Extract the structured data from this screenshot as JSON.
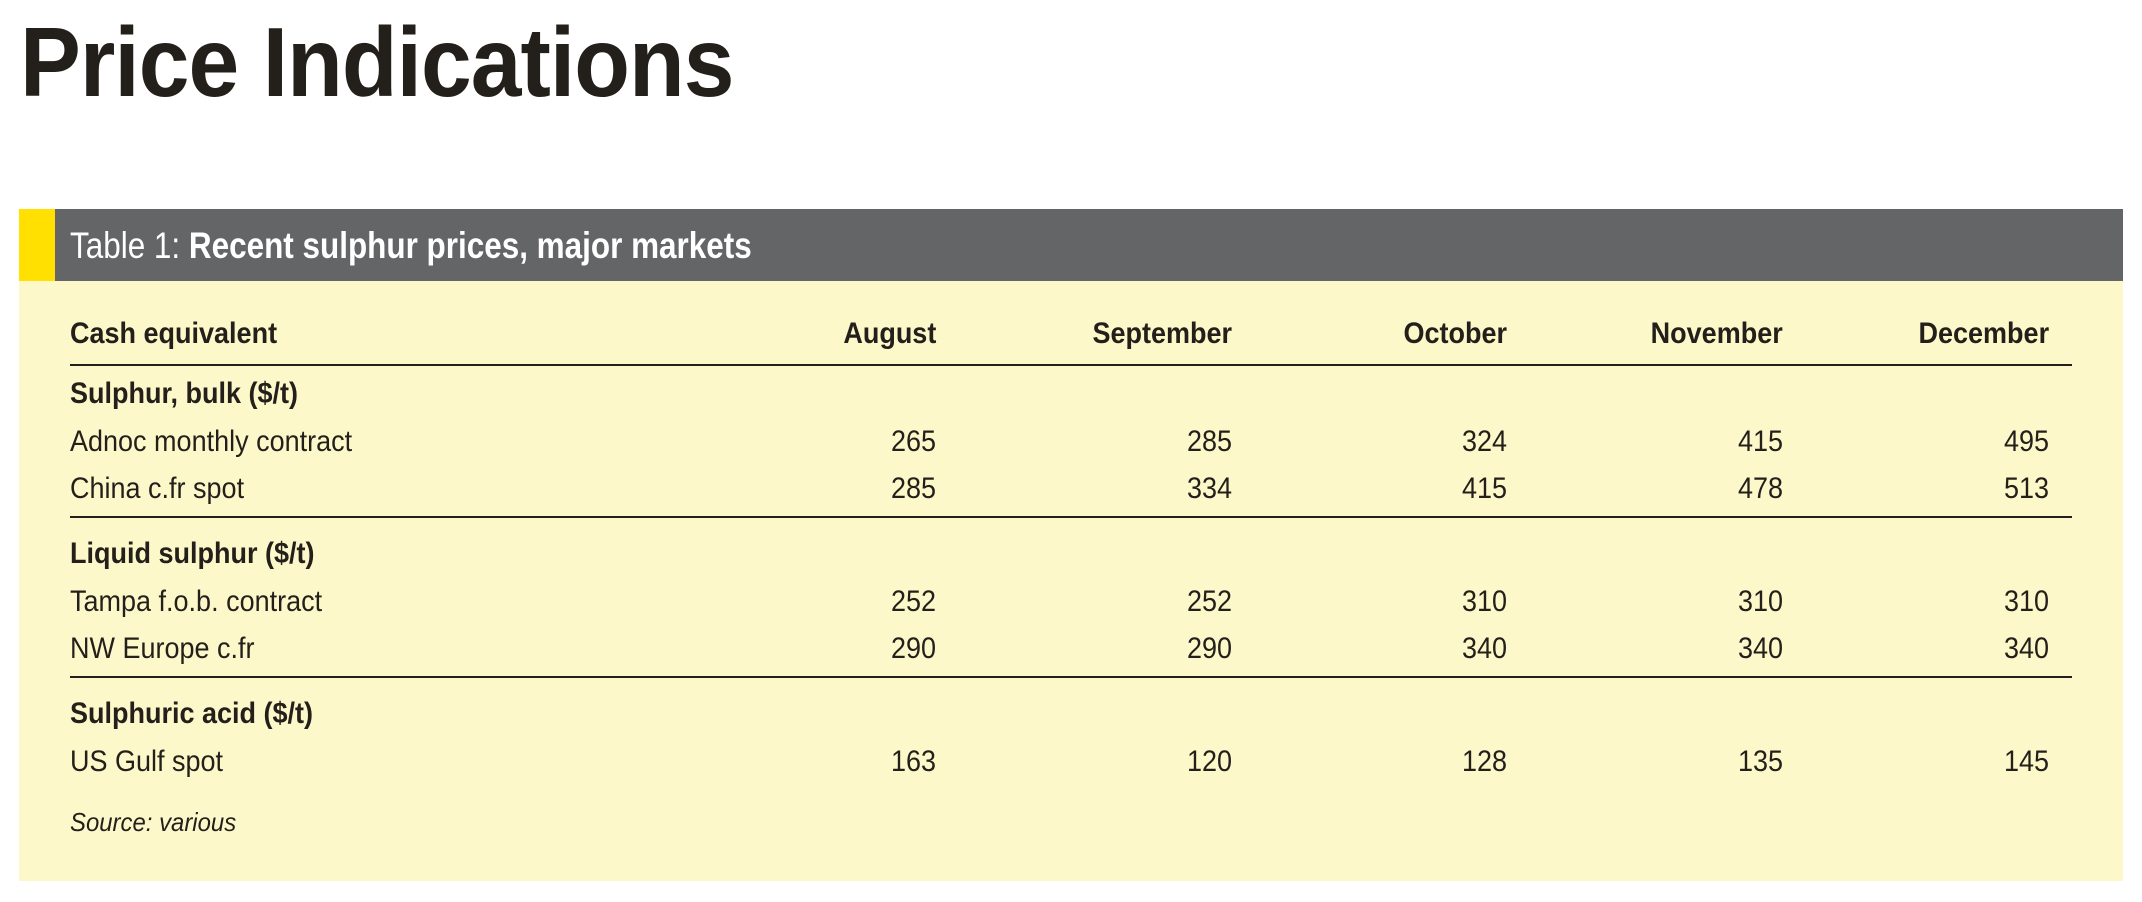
{
  "page_title": "Price Indications",
  "table": {
    "label": "Table 1:",
    "caption": "Recent sulphur prices, major markets",
    "accent_color": "#ffe000",
    "header_color": "#646567",
    "background_color": "#fdf8c9",
    "columns": [
      "Cash equivalent",
      "August",
      "September",
      "October",
      "November",
      "December"
    ],
    "sections": [
      {
        "title": "Sulphur, bulk ($/t)",
        "rows": [
          {
            "label": "Adnoc monthly contract",
            "values": [
              "265",
              "285",
              "324",
              "415",
              "495"
            ]
          },
          {
            "label": "China c.fr spot",
            "values": [
              "285",
              "334",
              "415",
              "478",
              "513"
            ]
          }
        ]
      },
      {
        "title": "Liquid sulphur ($/t)",
        "rows": [
          {
            "label": "Tampa f.o.b. contract",
            "values": [
              "252",
              "252",
              "310",
              "310",
              "310"
            ]
          },
          {
            "label": "NW Europe c.fr",
            "values": [
              "290",
              "290",
              "340",
              "340",
              "340"
            ]
          }
        ]
      },
      {
        "title": "Sulphuric acid ($/t)",
        "rows": [
          {
            "label": "US Gulf spot",
            "values": [
              "163",
              "120",
              "128",
              "135",
              "145"
            ]
          }
        ]
      }
    ],
    "source": "Source: various"
  }
}
